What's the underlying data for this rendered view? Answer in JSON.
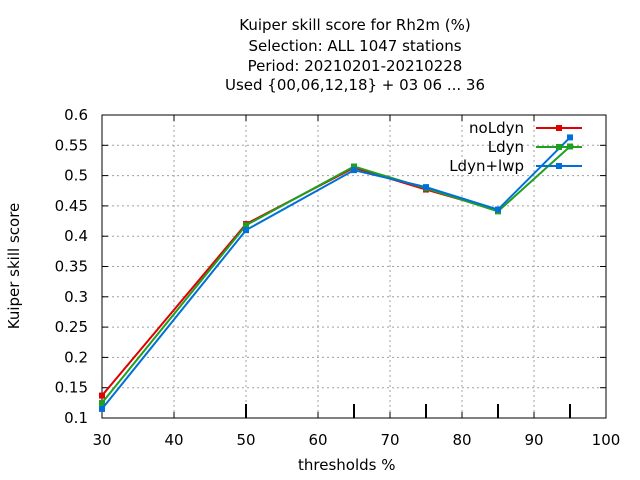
{
  "chart_data": {
    "type": "line",
    "title_lines": [
      "Kuiper skill score  for Rh2m (%)",
      "Selection: ALL   1047 stations",
      "Period: 20210201-20210228",
      "Used {00,06,12,18} + 03 06 ... 36"
    ],
    "xlabel": "thresholds %",
    "ylabel": "Kuiper skill score",
    "xlim": [
      30,
      100
    ],
    "ylim": [
      0.1,
      0.6
    ],
    "xticks": [
      30,
      40,
      50,
      60,
      70,
      80,
      90,
      100
    ],
    "yticks": [
      0.1,
      0.15,
      0.2,
      0.25,
      0.3,
      0.35,
      0.4,
      0.45,
      0.5,
      0.55,
      0.6
    ],
    "grid": true,
    "legend_position": "top-right",
    "x": [
      30,
      50,
      65,
      75,
      85,
      95
    ],
    "series": [
      {
        "name": "noLdyn",
        "color": "#e00000",
        "values": [
          0.137,
          0.42,
          0.513,
          0.477,
          0.443,
          null
        ]
      },
      {
        "name": "Ldyn",
        "color": "#20a020",
        "values": [
          0.125,
          0.418,
          0.515,
          0.479,
          0.441,
          0.548
        ]
      },
      {
        "name": "Ldyn+lwp",
        "color": "#0070d8",
        "values": [
          0.115,
          0.41,
          0.509,
          0.481,
          0.444,
          0.563
        ]
      }
    ]
  }
}
